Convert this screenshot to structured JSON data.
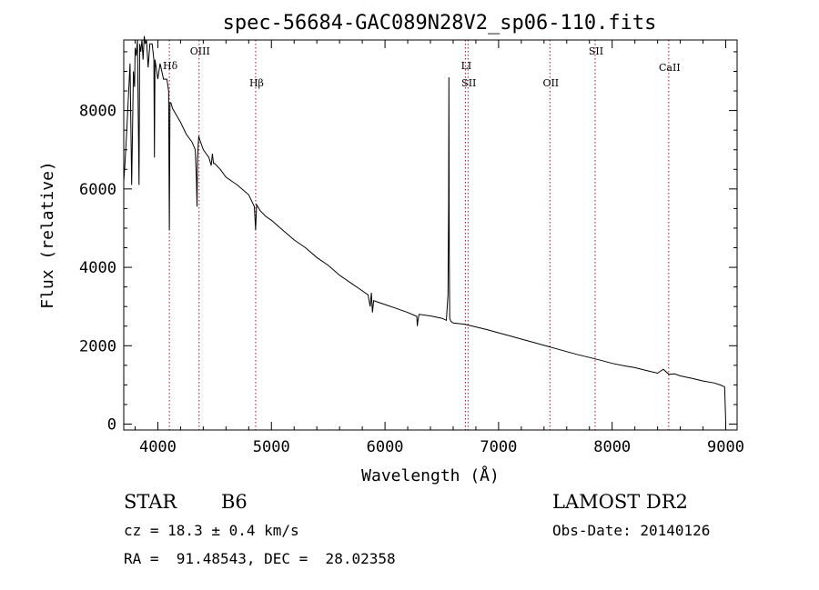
{
  "chart_data": {
    "type": "line",
    "title": "spec-56684-GAC089N28V2_sp06-110.fits",
    "xlabel": "Wavelength (Å)",
    "ylabel": "Flux (relative)",
    "xlim": [
      3700,
      9100
    ],
    "ylim": [
      -150,
      9800
    ],
    "x_ticks": [
      4000,
      5000,
      6000,
      7000,
      8000,
      9000
    ],
    "y_ticks": [
      0,
      2000,
      4000,
      6000,
      8000
    ],
    "grid": false,
    "series": [
      {
        "x": [
          3700,
          3710,
          3725,
          3740,
          3755,
          3770,
          3785,
          3795,
          3800,
          3810,
          3820,
          3835,
          3840,
          3850,
          3860,
          3870,
          3880,
          3890,
          3900,
          3915,
          3930,
          3950,
          3965,
          3970,
          3975,
          3985,
          4000,
          4020,
          4050,
          4080,
          4095,
          4101,
          4107,
          4115,
          4130,
          4150,
          4200,
          4250,
          4300,
          4330,
          4340,
          4345,
          4350,
          4360,
          4370,
          4400,
          4450,
          4470,
          4480,
          4490,
          4500,
          4550,
          4600,
          4700,
          4800,
          4850,
          4861,
          4870,
          4880,
          4900,
          4950,
          5000,
          5100,
          5200,
          5300,
          5400,
          5500,
          5600,
          5700,
          5800,
          5850,
          5870,
          5880,
          5890,
          5900,
          5950,
          6000,
          6100,
          6200,
          6280,
          6285,
          6290,
          6300,
          6400,
          6500,
          6540,
          6555,
          6560,
          6563,
          6566,
          6570,
          6580,
          6600,
          6700,
          6800,
          6900,
          7000,
          7100,
          7200,
          7300,
          7400,
          7500,
          7600,
          7700,
          7800,
          7900,
          8000,
          8100,
          8200,
          8300,
          8400,
          8450,
          8500,
          8550,
          8600,
          8700,
          8800,
          8900,
          8950,
          8990,
          9000
        ],
        "y": [
          6200,
          6600,
          7400,
          8300,
          9200,
          6100,
          9000,
          8600,
          9600,
          9400,
          9800,
          6100,
          9700,
          9500,
          9800,
          9300,
          9900,
          9700,
          9800,
          9100,
          9700,
          9700,
          9300,
          6800,
          9300,
          9100,
          8800,
          9200,
          8800,
          8800,
          8500,
          4950,
          8200,
          8200,
          8050,
          7950,
          7700,
          7400,
          7200,
          7000,
          6200,
          5550,
          6800,
          7350,
          7250,
          7000,
          6800,
          6600,
          6900,
          6650,
          6650,
          6500,
          6300,
          6100,
          5850,
          5550,
          4950,
          5600,
          5550,
          5450,
          5300,
          5200,
          4950,
          4700,
          4500,
          4250,
          4050,
          3800,
          3600,
          3400,
          3300,
          3000,
          3350,
          2850,
          3150,
          3100,
          3050,
          2950,
          2850,
          2750,
          2500,
          2650,
          2800,
          2760,
          2700,
          2650,
          3300,
          5600,
          8850,
          4400,
          2700,
          2620,
          2580,
          2550,
          2480,
          2410,
          2330,
          2250,
          2170,
          2090,
          2010,
          1930,
          1850,
          1770,
          1700,
          1630,
          1550,
          1490,
          1440,
          1370,
          1300,
          1400,
          1270,
          1280,
          1230,
          1170,
          1100,
          1050,
          1000,
          950,
          50
        ]
      }
    ],
    "lines": [
      {
        "name": "Hδ",
        "x": 4101.7
      },
      {
        "name": "OIII",
        "x": 4363.2
      },
      {
        "name": "Hβ",
        "x": 4861.3
      },
      {
        "name": "LI",
        "x": 6707.8
      },
      {
        "name": "SII",
        "x": 6730.8
      },
      {
        "name": "OII",
        "x": 7452.0
      },
      {
        "name": "SII",
        "x": 7850.0
      },
      {
        "name": "CaII",
        "x": 8498.0
      }
    ],
    "line_color": "#a0142a"
  },
  "info": {
    "object_type": "STAR",
    "subclass": "B6",
    "survey": "LAMOST DR2",
    "cz": "cz = 18.3 ± 0.4 km/s",
    "obs_date": "Obs-Date: 20140126",
    "coords": "RA =  91.48543, DEC =  28.02358"
  }
}
